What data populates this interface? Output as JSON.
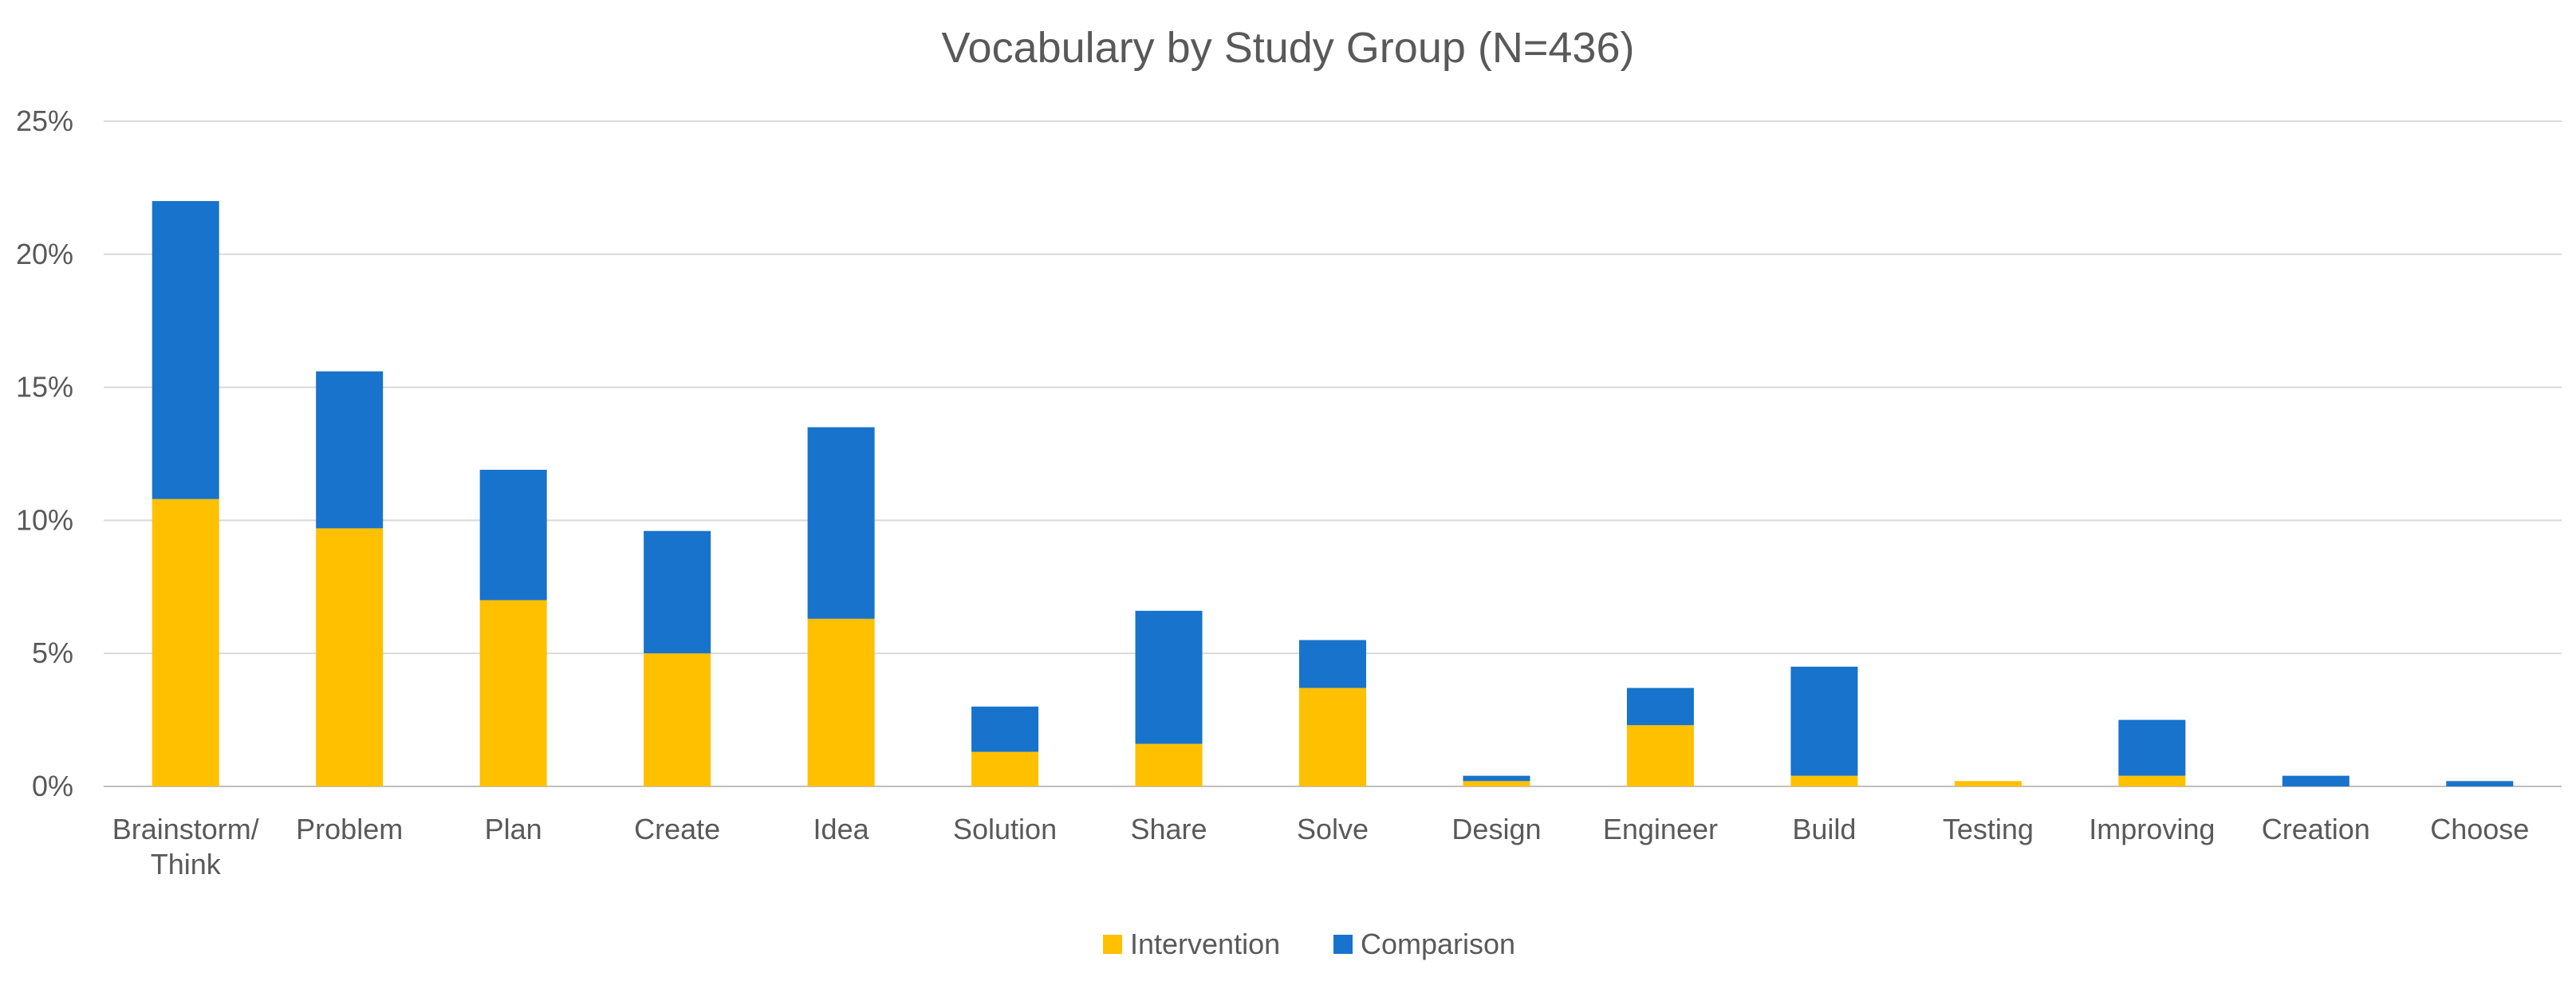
{
  "chart_data": {
    "type": "bar",
    "stacked": true,
    "title": "Vocabulary by Study Group (N=436)",
    "xlabel": "",
    "ylabel": "",
    "ylim": [
      0,
      25
    ],
    "y_ticks": [
      "0%",
      "5%",
      "10%",
      "15%",
      "20%",
      "25%"
    ],
    "y_tick_values": [
      0,
      5,
      10,
      15,
      20,
      25
    ],
    "grid": true,
    "legend_position": "bottom",
    "categories": [
      [
        "Brainstorm/",
        "Think"
      ],
      [
        "Problem"
      ],
      [
        "Plan"
      ],
      [
        "Create"
      ],
      [
        "Idea"
      ],
      [
        "Solution"
      ],
      [
        "Share"
      ],
      [
        "Solve"
      ],
      [
        "Design"
      ],
      [
        "Engineer"
      ],
      [
        "Build"
      ],
      [
        "Testing"
      ],
      [
        "Improving"
      ],
      [
        "Creation"
      ],
      [
        "Choose"
      ]
    ],
    "series": [
      {
        "name": "Intervention",
        "color": "#ffc000",
        "values": [
          10.8,
          9.7,
          7.0,
          5.0,
          6.3,
          1.3,
          1.6,
          3.7,
          0.2,
          2.3,
          0.4,
          0.2,
          0.4,
          0.0,
          0.0
        ]
      },
      {
        "name": "Comparison",
        "color": "#1873cc",
        "values": [
          11.2,
          5.9,
          4.9,
          4.6,
          7.2,
          1.7,
          5.0,
          1.8,
          0.2,
          1.4,
          4.1,
          0.0,
          2.1,
          0.4,
          0.2
        ]
      }
    ]
  }
}
